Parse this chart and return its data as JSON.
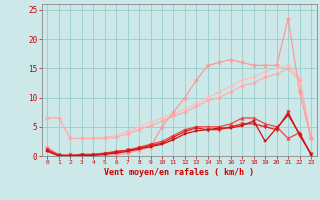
{
  "xlabel": "Vent moyen/en rafales ( km/h )",
  "xlim": [
    -0.5,
    23.5
  ],
  "ylim": [
    0,
    26
  ],
  "yticks": [
    0,
    5,
    10,
    15,
    20,
    25
  ],
  "xticks": [
    0,
    1,
    2,
    3,
    4,
    5,
    6,
    7,
    8,
    9,
    10,
    11,
    12,
    13,
    14,
    15,
    16,
    17,
    18,
    19,
    20,
    21,
    22,
    23
  ],
  "bg_color": "#cce8e8",
  "grid_color": "#99cccc",
  "series": [
    {
      "x": [
        0,
        1,
        2,
        3,
        4,
        5,
        6,
        7,
        8,
        9,
        10,
        11,
        12,
        13,
        14,
        15,
        16,
        17,
        18,
        19,
        20,
        21,
        22,
        23
      ],
      "y": [
        6.5,
        6.5,
        3.0,
        3.0,
        3.0,
        3.2,
        3.5,
        4.2,
        5.0,
        5.8,
        6.5,
        7.2,
        8.0,
        9.0,
        10.0,
        11.0,
        12.0,
        13.0,
        13.5,
        14.5,
        15.0,
        15.5,
        13.5,
        3.0
      ],
      "color": "#ffbbbb",
      "marker": "D",
      "markersize": 2.0,
      "linewidth": 0.8
    },
    {
      "x": [
        0,
        1,
        2,
        3,
        4,
        5,
        6,
        7,
        8,
        9,
        10,
        11,
        12,
        13,
        14,
        15,
        16,
        17,
        18,
        19,
        20,
        21,
        22,
        23
      ],
      "y": [
        6.5,
        6.5,
        3.0,
        3.0,
        3.0,
        3.0,
        3.2,
        3.8,
        4.5,
        5.2,
        6.0,
        6.8,
        7.5,
        8.5,
        9.5,
        10.0,
        11.0,
        12.0,
        12.5,
        13.5,
        14.0,
        15.0,
        13.0,
        3.0
      ],
      "color": "#ffaaaa",
      "marker": "D",
      "markersize": 2.0,
      "linewidth": 0.8
    },
    {
      "x": [
        0,
        1,
        2,
        3,
        4,
        5,
        6,
        7,
        8,
        9,
        10,
        11,
        12,
        13,
        14,
        15,
        16,
        17,
        18,
        19,
        20,
        21,
        22,
        23
      ],
      "y": [
        1.5,
        0.2,
        0.1,
        0.1,
        0.1,
        0.1,
        0.2,
        0.5,
        1.0,
        1.5,
        5.0,
        7.5,
        10.0,
        13.0,
        15.5,
        16.0,
        16.5,
        16.0,
        15.5,
        15.5,
        15.5,
        23.5,
        11.0,
        3.0
      ],
      "color": "#ff9999",
      "marker": "*",
      "markersize": 3.5,
      "linewidth": 0.9
    },
    {
      "x": [
        0,
        1,
        2,
        3,
        4,
        5,
        6,
        7,
        8,
        9,
        10,
        11,
        12,
        13,
        14,
        15,
        16,
        17,
        18,
        19,
        20,
        21,
        22,
        23
      ],
      "y": [
        1.2,
        0.2,
        0.1,
        0.3,
        0.3,
        0.5,
        0.8,
        1.0,
        1.5,
        2.0,
        2.5,
        3.5,
        4.5,
        5.0,
        5.0,
        5.0,
        5.5,
        6.5,
        6.5,
        5.5,
        5.0,
        3.0,
        4.0,
        0.2
      ],
      "color": "#ee4444",
      "marker": "^",
      "markersize": 2.5,
      "linewidth": 0.9
    },
    {
      "x": [
        0,
        1,
        2,
        3,
        4,
        5,
        6,
        7,
        8,
        9,
        10,
        11,
        12,
        13,
        14,
        15,
        16,
        17,
        18,
        19,
        20,
        21,
        22,
        23
      ],
      "y": [
        1.0,
        0.1,
        0.1,
        0.2,
        0.2,
        0.4,
        0.7,
        1.0,
        1.3,
        1.8,
        2.2,
        3.2,
        4.2,
        4.8,
        4.5,
        4.5,
        5.0,
        5.5,
        5.5,
        5.0,
        4.5,
        7.5,
        3.5,
        0.4
      ],
      "color": "#dd2222",
      "marker": "v",
      "markersize": 2.5,
      "linewidth": 0.9
    },
    {
      "x": [
        0,
        1,
        2,
        3,
        4,
        5,
        6,
        7,
        8,
        9,
        10,
        11,
        12,
        13,
        14,
        15,
        16,
        17,
        18,
        19,
        20,
        21,
        22,
        23
      ],
      "y": [
        0.8,
        0.0,
        0.0,
        0.1,
        0.1,
        0.3,
        0.5,
        0.8,
        1.2,
        1.6,
        2.0,
        2.8,
        3.8,
        4.3,
        4.5,
        4.8,
        4.8,
        5.2,
        6.0,
        2.5,
        4.8,
        7.0,
        3.8,
        0.2
      ],
      "color": "#cc1111",
      "marker": "s",
      "markersize": 2.0,
      "linewidth": 0.9
    }
  ]
}
